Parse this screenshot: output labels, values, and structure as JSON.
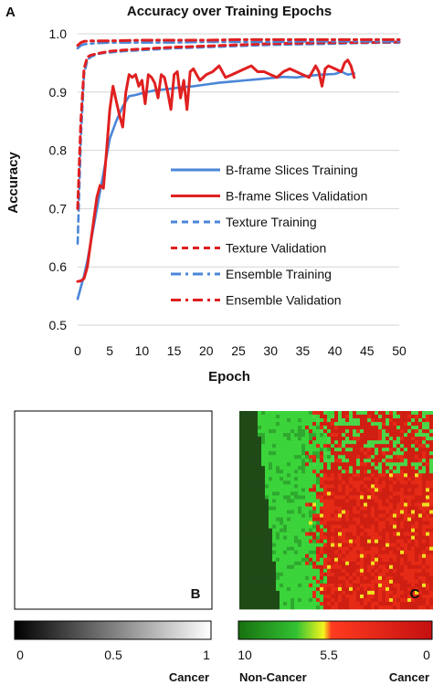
{
  "panel_a_label": "A",
  "panel_b_label": "B",
  "panel_c_label": "C",
  "chart_data": [
    {
      "type": "line",
      "title": "Accuracy over Training Epochs",
      "xlabel": "Epoch",
      "ylabel": "Accuracy",
      "xlim": [
        0,
        50
      ],
      "ylim": [
        0.5,
        1.0
      ],
      "xticks": [
        "0",
        "5",
        "10",
        "15",
        "20",
        "25",
        "30",
        "35",
        "40",
        "45",
        "50"
      ],
      "yticks": [
        "0.5",
        "0.6",
        "0.7",
        "0.8",
        "0.9",
        "1.0"
      ],
      "grid": true,
      "legend_position": "center-right",
      "series": [
        {
          "name": "B-frame Slices Training",
          "color": "#4a86d8",
          "dash": "solid",
          "x": [
            0,
            0.5,
            1,
            1.5,
            2,
            2.5,
            3,
            3.5,
            4,
            4.5,
            5,
            6,
            7,
            8,
            9,
            10,
            12,
            14,
            16,
            18,
            20,
            22,
            24,
            26,
            28,
            30,
            32,
            34,
            36,
            38,
            40,
            41,
            42,
            43
          ],
          "values": [
            0.545,
            0.565,
            0.585,
            0.61,
            0.64,
            0.67,
            0.7,
            0.73,
            0.76,
            0.79,
            0.82,
            0.85,
            0.875,
            0.893,
            0.895,
            0.898,
            0.903,
            0.905,
            0.908,
            0.91,
            0.913,
            0.916,
            0.918,
            0.92,
            0.922,
            0.924,
            0.926,
            0.925,
            0.928,
            0.93,
            0.931,
            0.935,
            0.93,
            0.932
          ]
        },
        {
          "name": "B-frame Slices Validation",
          "color": "#e02020",
          "dash": "solid",
          "x": [
            0,
            0.5,
            1,
            1.5,
            2,
            2.5,
            3,
            3.5,
            4,
            4.5,
            5,
            5.5,
            6,
            6.5,
            7,
            7.5,
            8,
            8.5,
            9,
            9.5,
            10,
            10.5,
            11,
            11.5,
            12,
            12.5,
            13,
            13.5,
            14,
            14.5,
            15,
            15.5,
            16,
            16.5,
            17,
            17.5,
            18,
            18.5,
            19,
            20,
            21,
            22,
            23,
            24,
            25,
            26,
            27,
            28,
            29,
            30,
            31,
            32,
            33,
            34,
            35,
            36,
            37,
            37.5,
            38,
            38.5,
            39,
            40,
            41,
            41.5,
            42,
            42.5,
            43
          ],
          "values": [
            0.575,
            0.576,
            0.58,
            0.6,
            0.64,
            0.68,
            0.72,
            0.74,
            0.735,
            0.8,
            0.87,
            0.91,
            0.885,
            0.86,
            0.84,
            0.9,
            0.93,
            0.925,
            0.93,
            0.91,
            0.92,
            0.88,
            0.93,
            0.925,
            0.915,
            0.89,
            0.93,
            0.925,
            0.9,
            0.87,
            0.93,
            0.935,
            0.89,
            0.92,
            0.87,
            0.935,
            0.94,
            0.93,
            0.92,
            0.93,
            0.935,
            0.945,
            0.925,
            0.93,
            0.935,
            0.94,
            0.945,
            0.935,
            0.935,
            0.93,
            0.925,
            0.935,
            0.94,
            0.935,
            0.93,
            0.925,
            0.945,
            0.935,
            0.91,
            0.94,
            0.945,
            0.94,
            0.935,
            0.95,
            0.955,
            0.945,
            0.925
          ]
        },
        {
          "name": "Texture Training",
          "color": "#4a86d8",
          "dash": "dash",
          "x": [
            0,
            0.5,
            1,
            1.5,
            2,
            3,
            4,
            5,
            7,
            10,
            15,
            20,
            25,
            30,
            35,
            40,
            43,
            50
          ],
          "values": [
            0.64,
            0.82,
            0.93,
            0.955,
            0.96,
            0.965,
            0.967,
            0.968,
            0.97,
            0.972,
            0.975,
            0.977,
            0.979,
            0.981,
            0.982,
            0.983,
            0.984,
            0.985
          ]
        },
        {
          "name": "Texture Validation",
          "color": "#e02020",
          "dash": "dash",
          "x": [
            0,
            0.5,
            1,
            1.5,
            2,
            3,
            4,
            5,
            7,
            10,
            15,
            20,
            25,
            30,
            35,
            40,
            43,
            50
          ],
          "values": [
            0.7,
            0.85,
            0.94,
            0.96,
            0.963,
            0.966,
            0.968,
            0.97,
            0.972,
            0.974,
            0.977,
            0.979,
            0.981,
            0.983,
            0.984,
            0.985,
            0.985,
            0.986
          ]
        },
        {
          "name": "Ensemble Training",
          "color": "#4a86d8",
          "dash": "dashdot",
          "x": [
            0,
            0.5,
            1,
            2,
            3,
            5,
            10,
            15,
            20,
            25,
            30,
            35,
            40,
            43,
            50
          ],
          "values": [
            0.975,
            0.98,
            0.982,
            0.983,
            0.984,
            0.985,
            0.985,
            0.985,
            0.986,
            0.986,
            0.986,
            0.987,
            0.987,
            0.987,
            0.987
          ]
        },
        {
          "name": "Ensemble Validation",
          "color": "#e02020",
          "dash": "dashdot",
          "x": [
            0,
            0.5,
            1,
            2,
            3,
            5,
            10,
            15,
            20,
            25,
            30,
            35,
            40,
            43,
            50
          ],
          "values": [
            0.98,
            0.985,
            0.987,
            0.988,
            0.988,
            0.988,
            0.989,
            0.989,
            0.989,
            0.99,
            0.99,
            0.99,
            0.99,
            0.99,
            0.99
          ]
        }
      ]
    },
    {
      "type": "heatmap",
      "panel": "B",
      "colormap": [
        "#000000",
        "#ffffff"
      ],
      "colorbar_ticks": [
        "0",
        "0.5",
        "1"
      ],
      "colorbar_label": "Cancer",
      "colorbar_range": [
        0,
        1
      ]
    },
    {
      "type": "heatmap",
      "panel": "C",
      "colormap": [
        "#17700f",
        "#3bd43b",
        "#f5f51e",
        "#ff3b1f",
        "#c41010"
      ],
      "colorbar_ticks": [
        "10",
        "5.5",
        "0"
      ],
      "colorbar_left_label": "Non-Cancer",
      "colorbar_right_label": "Cancer",
      "colorbar_range": [
        10,
        0
      ]
    }
  ]
}
